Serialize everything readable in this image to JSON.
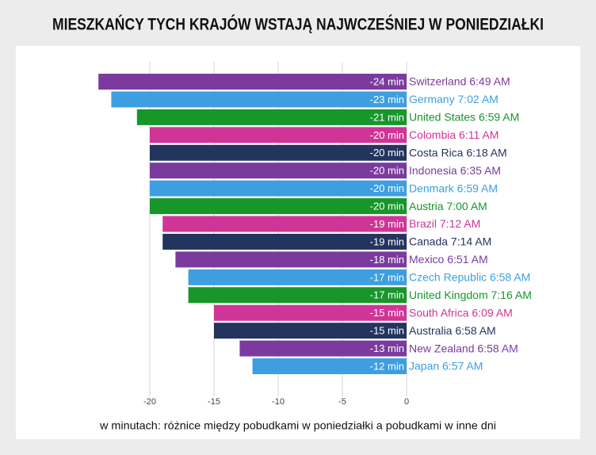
{
  "chart_data": {
    "type": "bar",
    "orientation": "horizontal",
    "title": "MIESZKAŃCY TYCH KRAJÓW WSTAJĄ NAJWCZEŚNIEJ W PONIEDZIAŁKI",
    "x_label": "w minutach: różnice między pobudkami w poniedziałki a pobudkami w inne dni",
    "categories": [
      "Switzerland 6:49 AM",
      "Germany 7:02 AM",
      "United States 6:59 AM",
      "Colombia 6:11 AM",
      "Costa Rica 6:18 AM",
      "Indonesia 6:35 AM",
      "Denmark 6:59 AM",
      "Austria 7:00 AM",
      "Brazil 7:12 AM",
      "Canada 7:14 AM",
      "Mexico 6:51 AM",
      "Czech Republic 6:58 AM",
      "United Kingdom 7:16 AM",
      "South Africa 6:09 AM",
      "Australia 6:58 AM",
      "New Zealand 6:58 AM",
      "Japan 6:57 AM"
    ],
    "values": [
      -24,
      -23,
      -21,
      -20,
      -20,
      -20,
      -20,
      -20,
      -19,
      -19,
      -18,
      -17,
      -17,
      -15,
      -15,
      -13,
      -12
    ],
    "value_labels": [
      "-24 min",
      "-23 min",
      "-21 min",
      "-20 min",
      "-20 min",
      "-20 min",
      "-20 min",
      "-20 min",
      "-19 min",
      "-19 min",
      "-18 min",
      "-17 min",
      "-17 min",
      "-15 min",
      "-15 min",
      "-13 min",
      "-12 min"
    ],
    "colors": [
      "#7b3b9e",
      "#3d9fe0",
      "#17962a",
      "#cf3597",
      "#23345e",
      "#7b3b9e",
      "#3d9fe0",
      "#17962a",
      "#cf3597",
      "#23345e",
      "#7b3b9e",
      "#3d9fe0",
      "#17962a",
      "#cf3597",
      "#23345e",
      "#7b3b9e",
      "#3d9fe0"
    ],
    "xlim": [
      -25,
      0
    ],
    "xticks": [
      -20,
      -15,
      -10,
      -5,
      0
    ],
    "grid": true
  }
}
